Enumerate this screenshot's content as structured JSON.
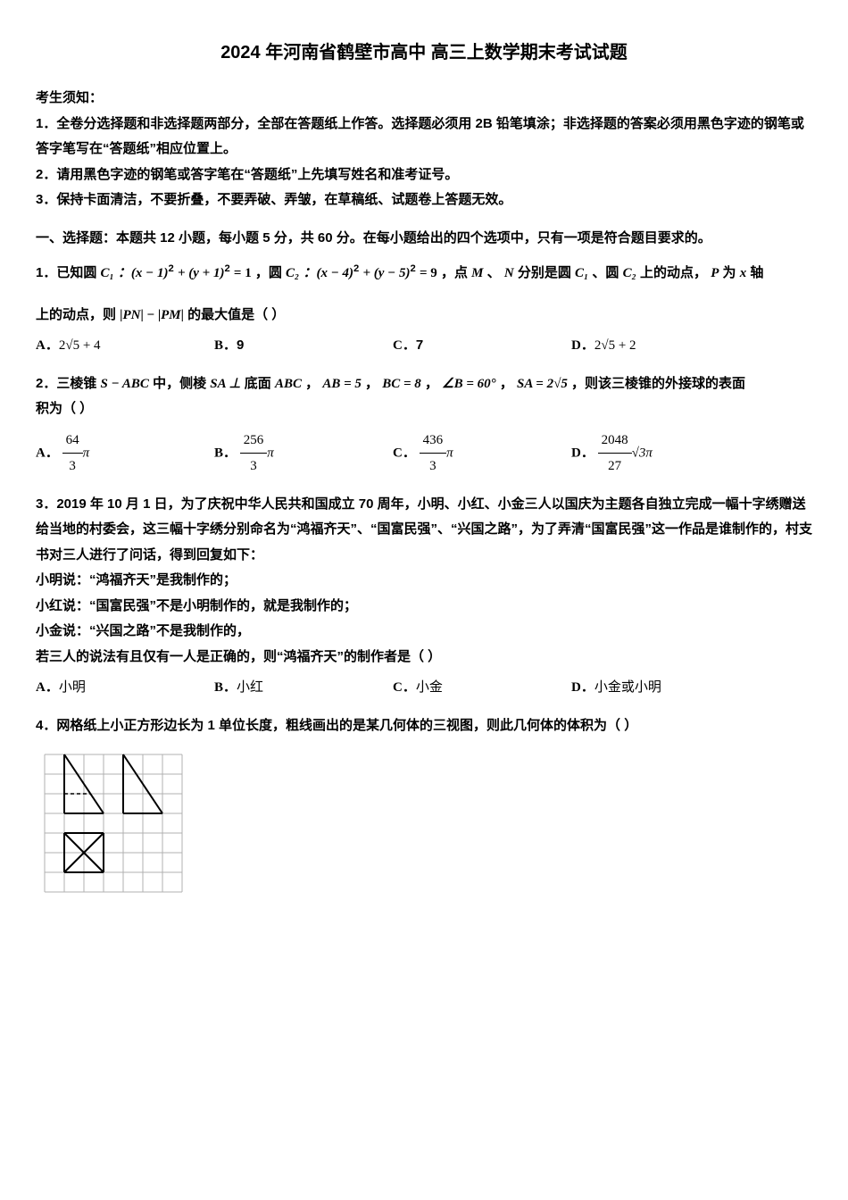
{
  "title": "2024 年河南省鹤壁市高中 高三上数学期末考试试题",
  "notice_header": "考生须知：",
  "notice": {
    "n1": "1．全卷分选择题和非选择题两部分，全部在答题纸上作答。选择题必须用 2B 铅笔填涂；非选择题的答案必须用黑色字迹的钢笔或答字笔写在“答题纸”相应位置上。",
    "n2": "2．请用黑色字迹的钢笔或答字笔在“答题纸”上先填写姓名和准考证号。",
    "n3": "3．保持卡面清洁，不要折叠，不要弄破、弄皱，在草稿纸、试题卷上答题无效。"
  },
  "section1": "一、选择题：本题共 12 小题，每小题 5 分，共 60 分。在每小题给出的四个选项中，只有一项是符合题目要求的。",
  "q1": {
    "pre": "1．已知圆 ",
    "c1": "C₁",
    "c1eq_a": "：(x − 1)",
    "c1eq_b": " + (y + 1)",
    "c1eq_c": " = 1",
    "mid1": "，圆 ",
    "c2": "C₂",
    "c2eq_a": "：(x − 4)",
    "c2eq_b": " + (y − 5)",
    "c2eq_c": " = 9",
    "mid2": "，点 ",
    "mvar": "M",
    "mid3": " 、",
    "nvar": "N",
    "mid4": " 分别是圆 ",
    "mid5": "、圆 ",
    "mid6": " 上的动点，",
    "pvar": "P",
    "mid7": " 为 ",
    "xvar": "x",
    "mid8": " 轴",
    "line2a": "上的动点，则 ",
    "abs_l": "|",
    "pn": "PN",
    "abs_m": "| − |",
    "pm": "PM",
    "abs_r": "|",
    "line2b": " 的最大值是（ ）",
    "optA": "2√5 + 4",
    "optB": "9",
    "optC": "7",
    "optD": "2√5 + 2"
  },
  "q2": {
    "pre": "2．三棱锥 ",
    "sabc": "S − ABC",
    "t1": " 中，侧棱 ",
    "sa_perp": "SA ⊥",
    "t2": " 底面 ",
    "abc": "ABC",
    "t3": "，",
    "ab": "AB = 5",
    "t4": "，",
    "bc": "BC = 8",
    "t5": "，",
    "angB": "∠B = 60°",
    "t6": "，",
    "sa": "SA = 2√5",
    "t7": "，则该三棱锥的外接球的表面",
    "line2": "积为（  ）",
    "optA_num": "64",
    "optA_den": "3",
    "optB_num": "256",
    "optB_den": "3",
    "optC_num": "436",
    "optC_den": "3",
    "optD_num": "2048",
    "optD_den": "27",
    "pi": "π",
    "optD_suffix": "√3π"
  },
  "q3": {
    "p1": "3．2019 年 10 月 1 日，为了庆祝中华人民共和国成立 70 周年，小明、小红、小金三人以国庆为主题各自独立完成一幅十字绣赠送给当地的村委会，这三幅十字绣分别命名为“鸿福齐天”、“国富民强”、“兴国之路”，为了弄清“国富民强”这一作品是谁制作的，村支书对三人进行了问话，得到回复如下：",
    "s1": "小明说：“鸿福齐天”是我制作的；",
    "s2": "小红说：“国富民强”不是小明制作的，就是我制作的；",
    "s3": "小金说：“兴国之路”不是我制作的，",
    "p2": "若三人的说法有且仅有一人是正确的，则“鸿福齐天”的制作者是（    ）",
    "optA": "小明",
    "optB": "小红",
    "optC": "小金",
    "optD": "小金或小明"
  },
  "q4": {
    "text": "4．网格纸上小正方形边长为 1 单位长度，粗线画出的是某几何体的三视图，则此几何体的体积为（    ）",
    "grid": {
      "cols": 7,
      "rows": 7,
      "cell": 22,
      "stroke": "#b0b0b0",
      "heavy": "#000000"
    }
  },
  "labels": {
    "A": "A．",
    "B": "B．",
    "C": "C．",
    "D": "D．"
  }
}
